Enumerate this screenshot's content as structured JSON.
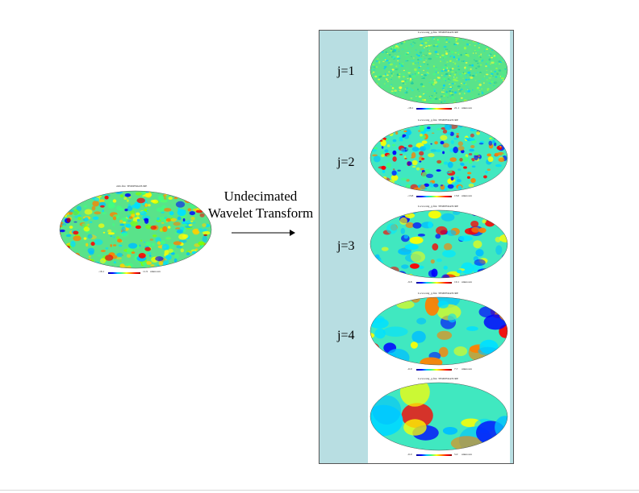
{
  "source_map": {
    "title": "cmb.fits: TEMPERATURE",
    "range_min": "-16.1",
    "range_max": "11.9",
    "range_unit": "unknown"
  },
  "transform_label_line1": "Undecimated",
  "transform_label_line2": "Wavelet Transform",
  "scales": [
    {
      "label": "j=1",
      "title": "Lwvscalej_g.fits: TEMPERATURE",
      "range_min": "-18.1",
      "range_max": "21.1",
      "range_unit": "unknown"
    },
    {
      "label": "j=2",
      "title": "Lwvscalej_g.fits: TEMPERATURE",
      "range_min": "-13.8",
      "range_max": "13.0",
      "range_unit": "unknown"
    },
    {
      "label": "j=3",
      "title": "Lwvscalej_g.fits: TEMPERATURE",
      "range_min": "-9.8",
      "range_max": "10.1",
      "range_unit": "unknown"
    },
    {
      "label": "j=4",
      "title": "Lwvscalej_g.fits: TEMPERATURE",
      "range_min": "-6.9",
      "range_max": "7.7",
      "range_unit": "unknown"
    },
    {
      "label": "",
      "title": "Lwvscalej_g.fits: TEMPERATURE",
      "range_min": "-6.0",
      "range_max": "5.0",
      "range_unit": "unknown"
    }
  ],
  "colors": {
    "panel_bg": "#b8dee2",
    "map_base": "#59e38a",
    "arrow": "#000000"
  },
  "colormap": [
    "#00008b",
    "#0000ff",
    "#00bfff",
    "#40ff80",
    "#ffff00",
    "#ff8000",
    "#ff0000",
    "#8b0000"
  ]
}
